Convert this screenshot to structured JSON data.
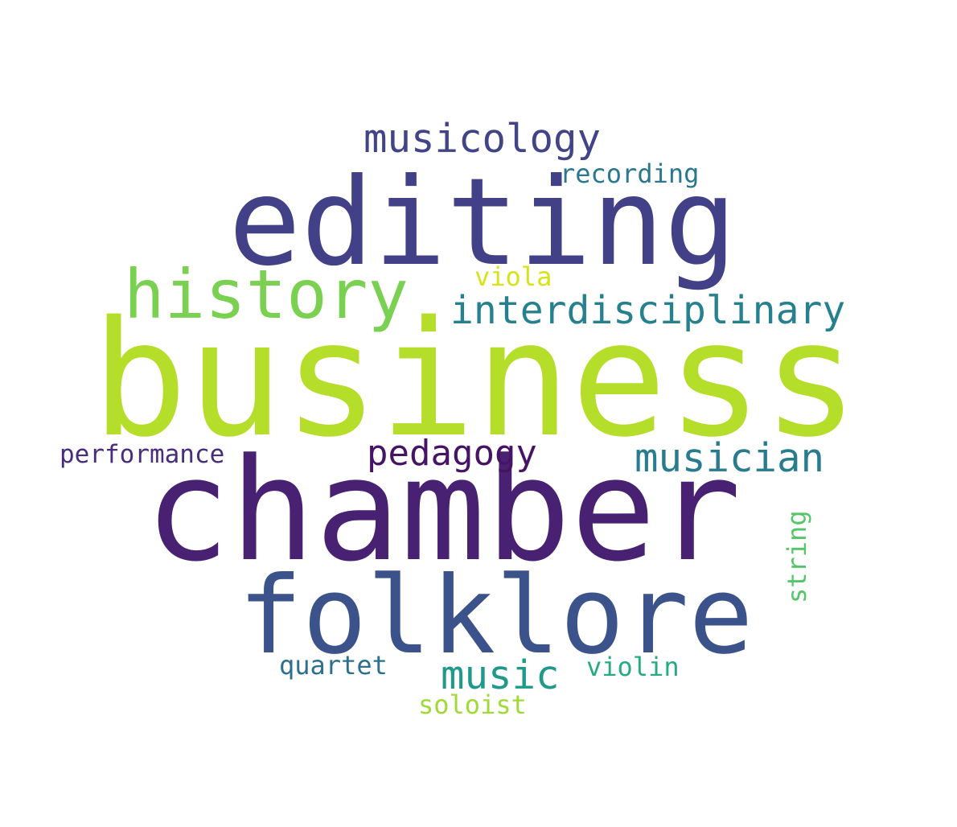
{
  "word_cloud": {
    "background": "#ffffff",
    "words": [
      {
        "id": "business",
        "text": "business",
        "color": "#b5de2b"
      },
      {
        "id": "chamber",
        "text": "chamber",
        "color": "#482173"
      },
      {
        "id": "editing",
        "text": "editing",
        "color": "#424086"
      },
      {
        "id": "folklore",
        "text": "folklore",
        "color": "#3b528b"
      },
      {
        "id": "history",
        "text": "history",
        "color": "#7ad151"
      },
      {
        "id": "interdisciplinary",
        "text": "interdisciplinary",
        "color": "#27808e"
      },
      {
        "id": "musicology",
        "text": "musicology",
        "color": "#414487"
      },
      {
        "id": "musician",
        "text": "musician",
        "color": "#297b8e"
      },
      {
        "id": "pedagogy",
        "text": "pedagogy",
        "color": "#471365"
      },
      {
        "id": "music",
        "text": "music",
        "color": "#1f9a8a"
      },
      {
        "id": "recording",
        "text": "recording",
        "color": "#2a788e"
      },
      {
        "id": "viola",
        "text": "viola",
        "color": "#d8e219"
      },
      {
        "id": "performance",
        "text": "performance",
        "color": "#472d7b"
      },
      {
        "id": "quartet",
        "text": "quartet",
        "color": "#2d708e"
      },
      {
        "id": "violin",
        "text": "violin",
        "color": "#25ab82"
      },
      {
        "id": "soloist",
        "text": "soloist",
        "color": "#a0da39"
      },
      {
        "id": "string",
        "text": "string",
        "color": "#54c568",
        "orientation": "vertical"
      }
    ]
  }
}
